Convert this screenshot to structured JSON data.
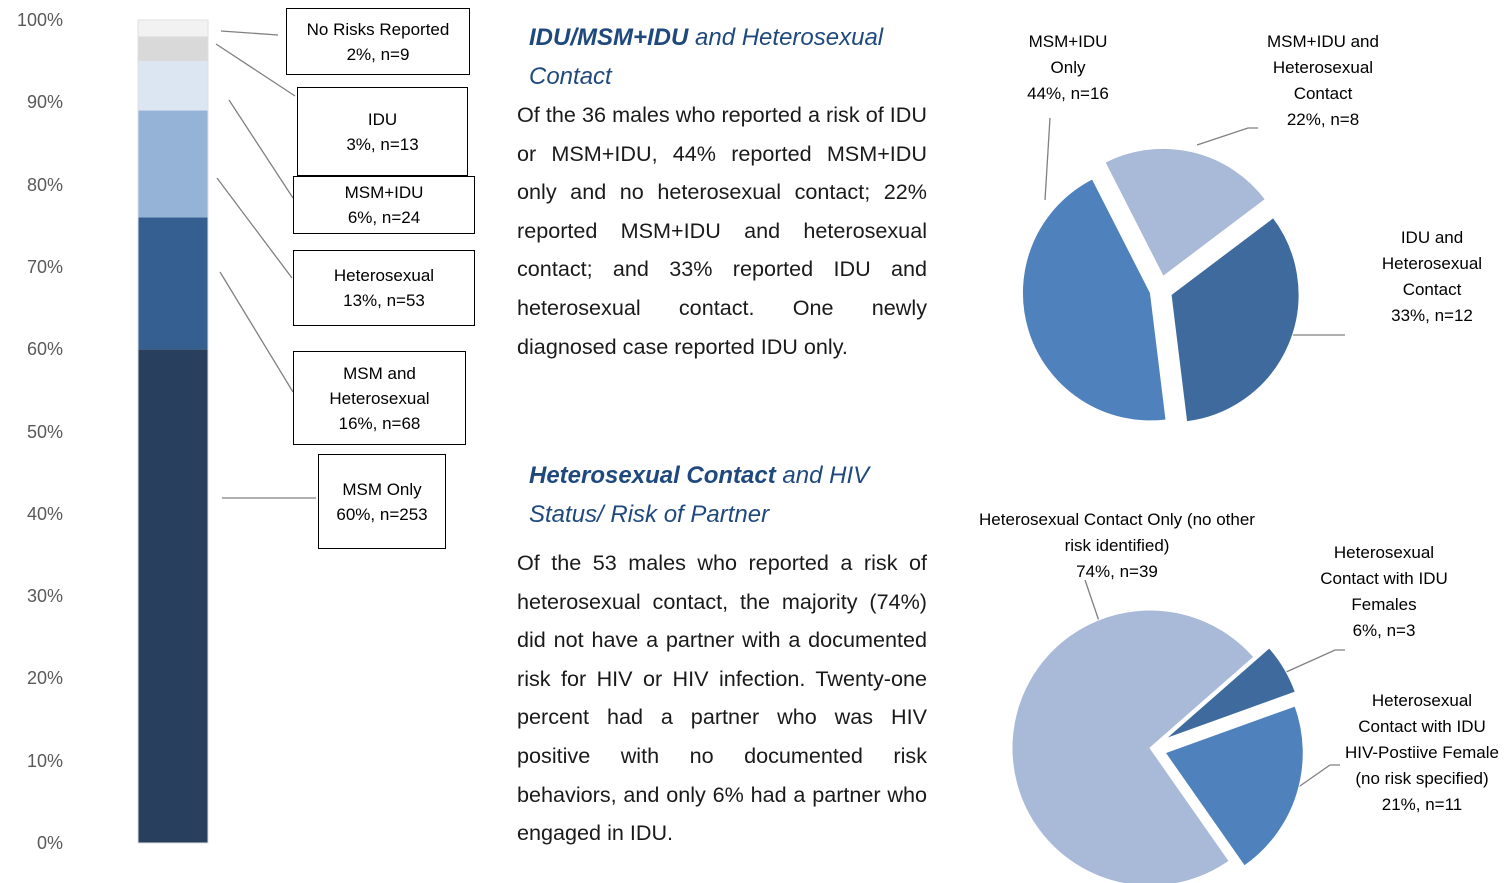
{
  "chart_data": [
    {
      "type": "stacked_bar",
      "categories": [
        null
      ],
      "ylim": [
        0,
        100
      ],
      "yticks": [
        {
          "value": 0,
          "label": "0%"
        },
        {
          "value": 10,
          "label": "10%"
        },
        {
          "value": 20,
          "label": "20%"
        },
        {
          "value": 30,
          "label": "30%"
        },
        {
          "value": 40,
          "label": "40%"
        },
        {
          "value": 50,
          "label": "50%"
        },
        {
          "value": 60,
          "label": "60%"
        },
        {
          "value": 70,
          "label": "70%"
        },
        {
          "value": 80,
          "label": "80%"
        },
        {
          "value": 90,
          "label": "90%"
        },
        {
          "value": 100,
          "label": "100%"
        }
      ],
      "grid": false,
      "series": [
        {
          "name": "MSM Only",
          "color": "#283f5e",
          "values": [
            60
          ],
          "value_labels": [
            "60%, n=253"
          ]
        },
        {
          "name": "MSM and Heterosexual",
          "color": "#355f91",
          "values": [
            16
          ],
          "value_labels": [
            "16%, n=68"
          ]
        },
        {
          "name": "Heterosexual",
          "color": "#95b3d7",
          "values": [
            13
          ],
          "value_labels": [
            "13%, n=53"
          ]
        },
        {
          "name": "MSM+IDU",
          "color": "#dce6f2",
          "values": [
            6
          ],
          "value_labels": [
            "6%, n=24"
          ]
        },
        {
          "name": "IDU",
          "color": "#d9d9d9",
          "values": [
            3
          ],
          "value_labels": [
            "3%, n=13"
          ]
        },
        {
          "name": "No Risks Reported",
          "color": "#f2f2f2",
          "values": [
            2
          ],
          "value_labels": [
            "2%, n=9"
          ]
        }
      ]
    },
    {
      "type": "pie",
      "categories": [
        "MSM+IDU Only",
        "MSM+IDU and Heterosexual Contact",
        "IDU and Heterosexual Contact"
      ],
      "values": [
        44,
        22,
        33
      ],
      "value_labels": [
        "44%, n=16",
        "22%, n=8",
        "33%, n=12"
      ],
      "colors": [
        "#4f81bd",
        "#a9b9d8",
        "#3f6a9e"
      ]
    },
    {
      "type": "pie",
      "categories": [
        "Heterosexual Contact Only (no other risk identified)",
        "Heterosexual Contact with IDU Females",
        "Heterosexual Contact with IDU HIV-Postiive Female (no risk specified)"
      ],
      "values": [
        74,
        6,
        21
      ],
      "value_labels": [
        "74%, n=39",
        "6%, n=3",
        "21%, n=11"
      ],
      "colors": [
        "#a9b9d8",
        "#3f6a9e",
        "#4f81bd"
      ]
    }
  ],
  "text": {
    "sections": [
      {
        "heading_bold": "IDU/MSM+IDU",
        "heading_rest": " and Heterosexual Contact",
        "body": "Of the 36 males who reported a risk of IDU or MSM+IDU, 44% reported MSM+IDU only and no heterosexual contact; 22% reported MSM+IDU and heterosexual contact; and 33% reported IDU and heterosexual contact. One newly diagnosed case reported IDU only."
      },
      {
        "heading_bold": "Heterosexual Contact",
        "heading_rest": " and HIV Status/ Risk of Partner",
        "body": "Of the 53 males who reported a risk of heterosexual contact, the majority (74%) did not have a partner with a documented risk for HIV or HIV infection.  Twenty-one percent had a partner who was HIV positive with no documented risk behaviors, and only 6% had a partner who engaged in IDU."
      }
    ]
  }
}
